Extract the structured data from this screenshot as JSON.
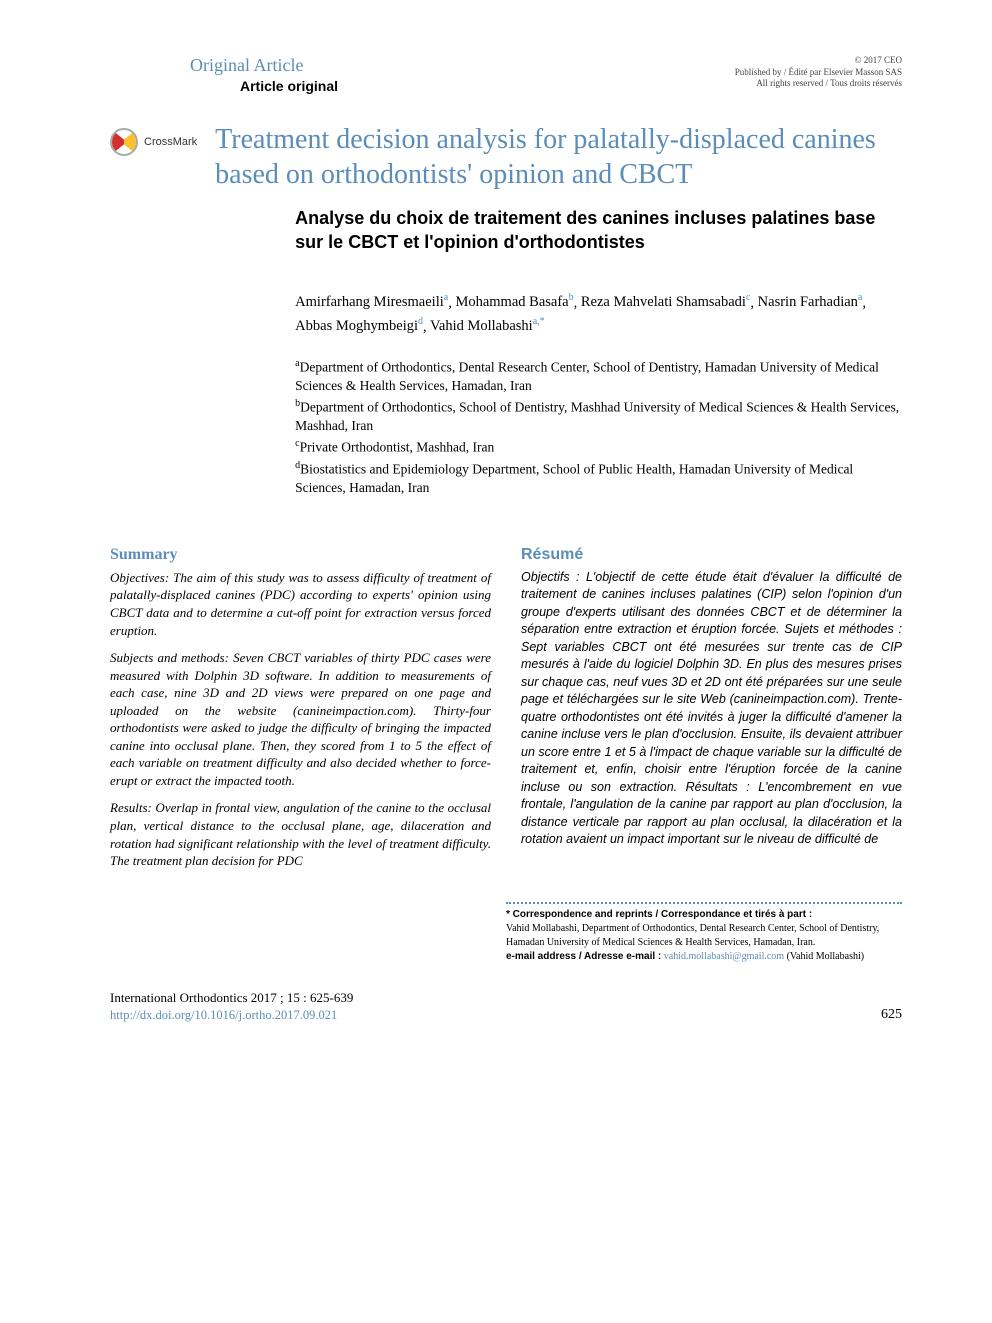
{
  "header": {
    "article_type_en": "Original Article",
    "article_type_fr": "Article original",
    "copyright_line1": "© 2017 CEO",
    "copyright_line2": "Published by / Édité par Elsevier Masson SAS",
    "copyright_line3": "All rights reserved / Tous droits réservés"
  },
  "crossmark_label": "CrossMark",
  "title": {
    "en": "Treatment decision analysis for palatally-displaced canines based on orthodontists' opinion and CBCT",
    "fr": "Analyse du choix de traitement des canines incluses palatines base sur le CBCT et l'opinion d'orthodontistes"
  },
  "authors": [
    {
      "name": "Amirfarhang Miresmaeili",
      "aff": "a"
    },
    {
      "name": "Mohammad Basafa",
      "aff": "b"
    },
    {
      "name": "Reza Mahvelati Shamsabadi",
      "aff": "c"
    },
    {
      "name": "Nasrin Farhadian",
      "aff": "a"
    },
    {
      "name": "Abbas Moghymbeigi",
      "aff": "d"
    },
    {
      "name": "Vahid Mollabashi",
      "aff": "a,*"
    }
  ],
  "affiliations": {
    "a": "Department of Orthodontics, Dental Research Center, School of Dentistry, Hamadan University of Medical Sciences & Health Services, Hamadan, Iran",
    "b": "Department of Orthodontics, School of Dentistry, Mashhad University of Medical Sciences & Health Services, Mashhad, Iran",
    "c": "Private Orthodontist, Mashhad, Iran",
    "d": "Biostatistics and Epidemiology Department, School of Public Health, Hamadan University of Medical Sciences, Hamadan, Iran"
  },
  "abstract_en": {
    "label": "Summary",
    "objectives": "Objectives: The aim of this study was to assess difficulty of treatment of palatally-displaced canines (PDC) according to experts' opinion using CBCT data and to determine a cut-off point for extraction versus forced eruption.",
    "methods": "Subjects and methods: Seven CBCT variables of thirty PDC cases were measured with Dolphin 3D software. In addition to measurements of each case, nine 3D and 2D views were prepared on one page and uploaded on the website (canineimpaction.com). Thirty-four orthodontists were asked to judge the difficulty of bringing the impacted canine into occlusal plane. Then, they scored from 1 to 5 the effect of each variable on treatment difficulty and also decided whether to force-erupt or extract the impacted tooth.",
    "results": "Results: Overlap in frontal view, angulation of the canine to the occlusal plan, vertical distance to the occlusal plane, age, dilaceration and rotation had significant relationship with the level of treatment difficulty. The treatment plan decision for PDC"
  },
  "abstract_fr": {
    "label": "Résumé",
    "objectives": "Objectifs : L'objectif de cette étude était d'évaluer la difficulté de traitement de canines incluses palatines (CIP) selon l'opinion d'un groupe d'experts utilisant des données CBCT et de déterminer la séparation entre extraction et éruption forcée.",
    "methods": "Sujets et méthodes : Sept variables CBCT ont été mesurées sur trente cas de CIP mesurés à l'aide du logiciel Dolphin 3D. En plus des mesures prises sur chaque cas, neuf vues 3D et 2D ont été préparées sur une seule page et téléchargées sur le site Web (canineimpaction.com). Trente-quatre orthodontistes ont été invités à juger la difficulté d'amener la canine incluse vers le plan d'occlusion. Ensuite, ils devaient attribuer un score entre 1 et 5 à l'impact de chaque variable sur la difficulté de traitement et, enfin, choisir entre l'éruption forcée de la canine incluse ou son extraction.",
    "results": "Résultats : L'encombrement en vue frontale, l'angulation de la canine par rapport au plan d'occlusion, la distance verticale par rapport au plan occlusal, la dilacération et la rotation avaient un impact important sur le niveau de difficulté de"
  },
  "correspondence": {
    "title": "* Correspondence and reprints / Correspondance et tirés à part :",
    "text": "Vahid Mollabashi, Department of Orthodontics, Dental Research Center, School of Dentistry, Hamadan University of Medical Sciences & Health Services, Hamadan, Iran.",
    "email_label": "e-mail address / Adresse e-mail :",
    "email": "vahid.mollabashi@gmail.com",
    "email_name": "(Vahid Mollabashi)"
  },
  "footer": {
    "journal": "International Orthodontics 2017 ; 15 : 625-639",
    "doi": "http://dx.doi.org/10.1016/j.ortho.2017.09.021",
    "page": "625"
  },
  "colors": {
    "accent": "#5a8db8",
    "text": "#000000",
    "background": "#ffffff",
    "crossmark_red": "#d32f2f",
    "crossmark_yellow": "#fbc02d"
  },
  "typography": {
    "body_family": "Georgia, serif",
    "sans_family": "Arial, sans-serif",
    "title_en_size_pt": 21,
    "title_fr_size_pt": 14,
    "body_size_pt": 10.5,
    "abstract_size_pt": 9.5
  }
}
